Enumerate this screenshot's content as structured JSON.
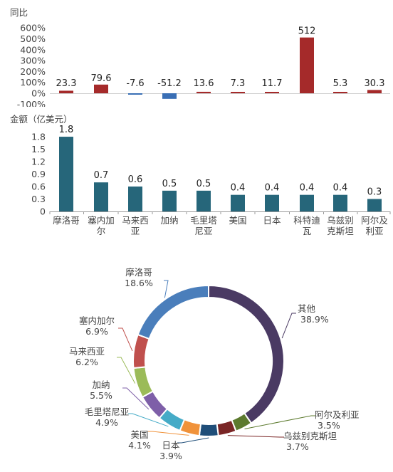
{
  "chart_data": [
    {
      "type": "bar",
      "ylabel": "同比",
      "y_ticks": [
        "600%",
        "500%",
        "400%",
        "300%",
        "200%",
        "100%",
        "0%",
        "-100%"
      ],
      "ylim": [
        -100,
        600
      ],
      "categories": [
        "摩洛哥",
        "塞内加尔",
        "马来西亚",
        "加纳",
        "毛里塔尼亚",
        "美国",
        "日本",
        "科特迪瓦",
        "乌兹别克斯坦",
        "阿尔及利亚"
      ],
      "values": [
        23.3,
        79.6,
        -7.6,
        -51.2,
        13.6,
        7.3,
        11.7,
        512,
        5.3,
        30.3
      ],
      "value_labels": [
        "23.3",
        "79.6",
        "-7.6",
        "-51.2",
        "13.6",
        "7.3",
        "11.7",
        "512",
        "5.3",
        "30.3"
      ],
      "colors": {
        "positive": "#a52a2a",
        "negative": "#3a6fb5"
      }
    },
    {
      "type": "bar",
      "ylabel": "金额（亿美元）",
      "y_ticks": [
        "1.8",
        "1.5",
        "1.2",
        "0.9",
        "0.6",
        "0.3",
        "0"
      ],
      "ylim": [
        0,
        1.8
      ],
      "categories": [
        "摩洛哥",
        "塞内加尔",
        "马来西亚",
        "加纳",
        "毛里塔尼亚",
        "美国",
        "日本",
        "科特迪瓦",
        "乌兹别克斯坦",
        "阿尔及利亚"
      ],
      "category_lines": [
        [
          "摩洛哥"
        ],
        [
          "塞内加",
          "尔"
        ],
        [
          "马来西",
          "亚"
        ],
        [
          "加纳"
        ],
        [
          "毛里塔",
          "尼亚"
        ],
        [
          "美国"
        ],
        [
          "日本"
        ],
        [
          "科特迪",
          "瓦"
        ],
        [
          "乌兹别",
          "克斯坦"
        ],
        [
          "阿尔及",
          "利亚"
        ]
      ],
      "values": [
        1.8,
        0.7,
        0.6,
        0.5,
        0.5,
        0.4,
        0.4,
        0.4,
        0.4,
        0.3
      ],
      "value_labels": [
        "1.8",
        "0.7",
        "0.6",
        "0.5",
        "0.5",
        "0.4",
        "0.4",
        "0.4",
        "0.4",
        "0.3"
      ],
      "colors": {
        "bar": "#26667a"
      }
    },
    {
      "type": "pie",
      "donut": true,
      "slices": [
        {
          "name": "其他",
          "value": 38.9,
          "label": "38.9%",
          "color": "#4a3a63"
        },
        {
          "name": "阿尔及利亚",
          "value": 3.5,
          "label": "3.5%",
          "color": "#5c7a2e"
        },
        {
          "name": "乌兹别克斯坦",
          "value": 3.7,
          "label": "3.7%",
          "color": "#7a2626"
        },
        {
          "name": "日本",
          "value": 3.9,
          "label": "3.9%",
          "color": "#1f4e79"
        },
        {
          "name": "美国",
          "value": 4.1,
          "label": "4.1%",
          "color": "#f0923a"
        },
        {
          "name": "毛里塔尼亚",
          "value": 4.9,
          "label": "4.9%",
          "color": "#45abc7"
        },
        {
          "name": "加纳",
          "value": 5.5,
          "label": "5.5%",
          "color": "#7e5fa8"
        },
        {
          "name": "马来西亚",
          "value": 6.2,
          "label": "6.2%",
          "color": "#9bbb59"
        },
        {
          "name": "塞内加尔",
          "value": 6.9,
          "label": "6.9%",
          "color": "#c0504d"
        },
        {
          "name": "摩洛哥",
          "value": 18.6,
          "label": "18.6%",
          "color": "#4a7ebb"
        }
      ],
      "ring_colors_note_free": true
    }
  ]
}
